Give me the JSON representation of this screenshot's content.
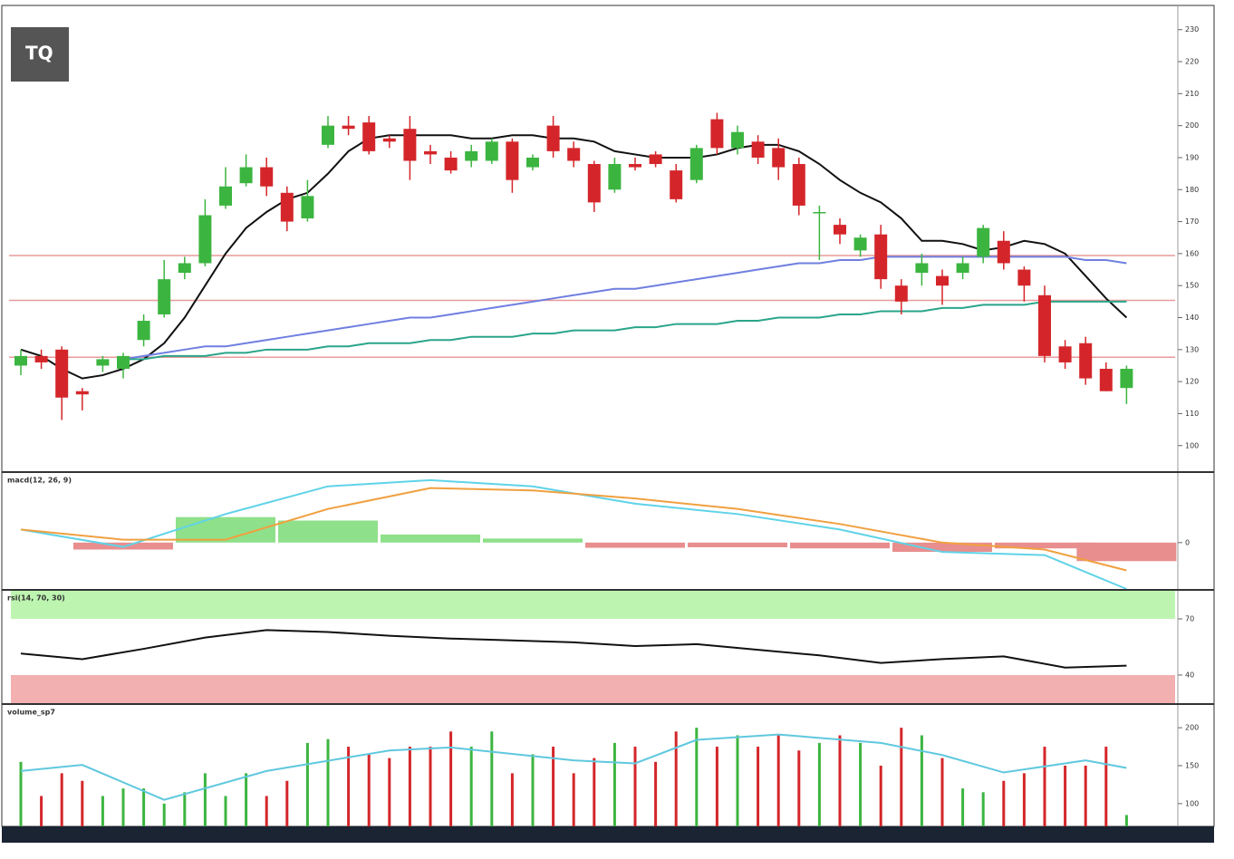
{
  "logo": "TQ",
  "chart_data": [
    {
      "type": "candlestick",
      "up_color": "#3cb540",
      "down_color": "#d4262a",
      "open": [
        125,
        128,
        130,
        117,
        125,
        124,
        133,
        141,
        154,
        157,
        175,
        182,
        187,
        179,
        171,
        194,
        200,
        201,
        196,
        199,
        192,
        190,
        189,
        189,
        195,
        187,
        200,
        193,
        188,
        180,
        188,
        191,
        186,
        183,
        202,
        193,
        195,
        193,
        188,
        173,
        169,
        161,
        166,
        150,
        154,
        153,
        154,
        159,
        164,
        155,
        147,
        131,
        132,
        124,
        118
      ],
      "high": [
        130,
        130,
        131,
        118,
        128,
        129,
        141,
        158,
        159,
        177,
        187,
        191,
        190,
        181,
        183,
        203,
        203,
        203,
        197,
        203,
        194,
        192,
        194,
        196,
        196,
        191,
        203,
        195,
        189,
        190,
        190,
        192,
        188,
        194,
        204,
        200,
        197,
        196,
        190,
        175,
        171,
        166,
        169,
        152,
        160,
        155,
        159,
        169,
        167,
        156,
        150,
        133,
        134,
        126,
        125
      ],
      "low": [
        122,
        124,
        108,
        111,
        123,
        121,
        131,
        140,
        152,
        156,
        174,
        181,
        178,
        167,
        170,
        193,
        197,
        191,
        193,
        183,
        188,
        185,
        187,
        188,
        179,
        186,
        190,
        187,
        173,
        179,
        186,
        187,
        176,
        182,
        191,
        191,
        188,
        183,
        172,
        158,
        163,
        159,
        149,
        141,
        150,
        144,
        152,
        157,
        155,
        145,
        126,
        124,
        119,
        117,
        113
      ],
      "close": [
        128,
        126,
        115,
        116,
        127,
        128,
        139,
        152,
        157,
        172,
        181,
        187,
        181,
        170,
        178,
        200,
        199,
        192,
        195,
        189,
        191,
        186,
        192,
        195,
        183,
        190,
        192,
        189,
        176,
        188,
        187,
        188,
        177,
        193,
        193,
        198,
        190,
        187,
        175,
        173,
        166,
        165,
        152,
        145,
        157,
        150,
        157,
        168,
        157,
        150,
        128,
        126,
        121,
        117,
        124
      ],
      "lines": [
        {
          "color": "#111111",
          "values": [
            130,
            128,
            124,
            121,
            122,
            124,
            127,
            132,
            140,
            150,
            160,
            168,
            173,
            177,
            179,
            185,
            192,
            196,
            197,
            197,
            197,
            197,
            196,
            196,
            197,
            197,
            196,
            196,
            195,
            192,
            191,
            190,
            190,
            190,
            191,
            193,
            194,
            194,
            192,
            188,
            183,
            179,
            176,
            171,
            164,
            164,
            163,
            161,
            162,
            164,
            163,
            160,
            153,
            146,
            140
          ]
        },
        {
          "color": "#6f7fe0",
          "values": [
            null,
            null,
            null,
            null,
            null,
            127,
            128,
            129,
            130,
            131,
            131,
            132,
            133,
            134,
            135,
            136,
            137,
            138,
            139,
            140,
            140,
            141,
            142,
            143,
            144,
            145,
            146,
            147,
            148,
            149,
            149,
            150,
            151,
            152,
            153,
            154,
            155,
            156,
            157,
            157,
            158,
            158,
            159,
            159,
            159,
            159,
            159,
            159,
            159,
            159,
            159,
            159,
            158,
            158,
            157
          ]
        },
        {
          "color": "#2aa58a",
          "values": [
            null,
            null,
            null,
            null,
            null,
            127,
            127,
            128,
            128,
            128,
            129,
            129,
            130,
            130,
            130,
            131,
            131,
            132,
            132,
            132,
            133,
            133,
            134,
            134,
            134,
            135,
            135,
            136,
            136,
            136,
            137,
            137,
            138,
            138,
            138,
            139,
            139,
            140,
            140,
            140,
            141,
            141,
            142,
            142,
            142,
            143,
            143,
            144,
            144,
            144,
            145,
            145,
            145,
            145,
            145
          ]
        }
      ],
      "hlines": [
        159.4,
        145.4,
        127.6
      ],
      "hline_color": "#e89a9a",
      "ylim": [
        92,
        237
      ],
      "yticks": [
        100,
        110,
        120,
        130,
        140,
        150,
        160,
        170,
        180,
        190,
        200,
        210,
        220,
        230
      ],
      "grid": false
    },
    {
      "type": "macd",
      "title": "macd(12, 26, 9)",
      "x": [
        0,
        5,
        10,
        15,
        20,
        25,
        30,
        35,
        40,
        45,
        50,
        54
      ],
      "series": [
        {
          "color": "#5fd3e8",
          "values": [
            1.13,
            -0.37,
            2.46,
            4.85,
            5.38,
            4.85,
            3.35,
            2.46,
            1.13,
            -0.81,
            -1.08,
            -4.0
          ]
        },
        {
          "color": "#f0a040",
          "values": [
            1.13,
            0.25,
            0.25,
            2.9,
            4.7,
            4.5,
            3.8,
            2.9,
            1.6,
            0,
            -0.6,
            -2.4
          ]
        }
      ],
      "histogram": [
        0,
        -0.6,
        2.2,
        1.9,
        0.7,
        0.35,
        -0.45,
        -0.4,
        -0.5,
        -0.8,
        -0.5,
        -1.6
      ],
      "hist_up": "#8fe08a",
      "hist_down": "#e88e8e",
      "ylim": [
        -4,
        6
      ],
      "yticks": [
        0
      ]
    },
    {
      "type": "line",
      "title": "rsi(14, 70, 30)",
      "x": [
        0,
        3,
        6,
        9,
        12,
        15,
        18,
        21,
        24,
        27,
        30,
        33,
        36,
        39,
        42,
        45,
        48,
        51,
        54
      ],
      "values": [
        51.5,
        48.5,
        54,
        60,
        64,
        63,
        61,
        59.5,
        58.5,
        57.5,
        55.5,
        56.5,
        53.5,
        50.5,
        46.5,
        48.5,
        50,
        44,
        45
      ],
      "color": "#111111",
      "bands": [
        {
          "range": [
            70,
            85
          ],
          "color": "#bdf5b0"
        },
        {
          "range": [
            25,
            40
          ],
          "color": "#f2b0b0"
        }
      ],
      "ylim": [
        25,
        85
      ],
      "yticks": [
        70,
        40
      ]
    },
    {
      "type": "bar",
      "title": "volume_sp7",
      "values": [
        155,
        110,
        140,
        130,
        110,
        120,
        120,
        100,
        115,
        140,
        110,
        140,
        110,
        130,
        180,
        185,
        175,
        165,
        160,
        175,
        175,
        195,
        175,
        195,
        140,
        165,
        175,
        140,
        160,
        180,
        175,
        155,
        195,
        200,
        175,
        190,
        175,
        190,
        170,
        180,
        190,
        180,
        150,
        200,
        190,
        160,
        120,
        115,
        130,
        140,
        175,
        150,
        150,
        175,
        85
      ],
      "ma_x": [
        0,
        3,
        7,
        12,
        18,
        21,
        27,
        30,
        33,
        37,
        42,
        45,
        48,
        52,
        54
      ],
      "ma_values": [
        143,
        151,
        105,
        143,
        170,
        174,
        157,
        153,
        184,
        191,
        180,
        164,
        141,
        157,
        147
      ],
      "ma_color": "#5fc8de",
      "ylim": [
        70,
        230
      ],
      "yticks": [
        100,
        150,
        200
      ]
    }
  ]
}
